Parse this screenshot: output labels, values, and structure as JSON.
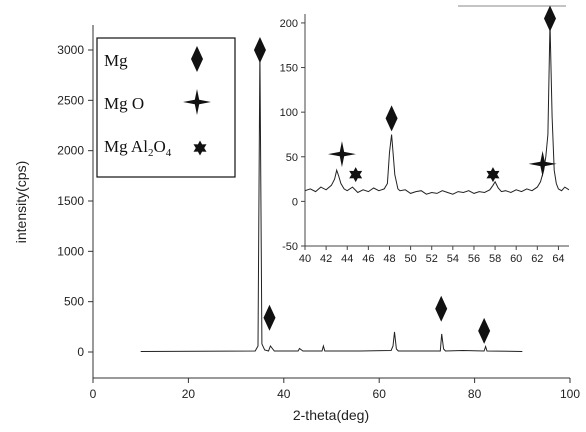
{
  "chart_data": [
    {
      "type": "line",
      "role": "main",
      "xlabel": "2-theta(deg)",
      "ylabel": "intensity(cps)",
      "xlim": [
        0,
        100
      ],
      "ylim": [
        -150,
        3300
      ],
      "xticks": [
        0,
        20,
        40,
        60,
        80,
        100
      ],
      "yticks": [
        0,
        500,
        1000,
        1500,
        2000,
        2500,
        3000
      ],
      "grid": false,
      "legend_position": "top-left",
      "legend": [
        {
          "label": "Mg",
          "marker": "diamond"
        },
        {
          "label": "Mg O",
          "marker": "four-point-star"
        },
        {
          "label": "Mg Al",
          "sub2": "2",
          "mid": "O",
          "sub4": "4",
          "marker": "six-point-star"
        }
      ],
      "series": [
        {
          "x": [
            10,
            34.0,
            34.6,
            35.0,
            35.4,
            36.0,
            36.8,
            37.2,
            38.0,
            43.0,
            43.3,
            44.0,
            48.0,
            48.3,
            48.6,
            56.0,
            62.5,
            62.9,
            63.2,
            63.6,
            64.0,
            64.6,
            72.8,
            73.1,
            73.5,
            73.9,
            77.5,
            82.0,
            82.3,
            82.6,
            90
          ],
          "y": [
            5,
            10,
            60,
            2990,
            80,
            20,
            10,
            60,
            10,
            10,
            35,
            10,
            10,
            60,
            10,
            10,
            15,
            60,
            200,
            30,
            10,
            10,
            10,
            180,
            30,
            10,
            15,
            10,
            55,
            10,
            5
          ]
        }
      ],
      "markers": [
        {
          "x": 35.0,
          "y": 3000,
          "phase": "Mg"
        },
        {
          "x": 37.0,
          "y": 340,
          "phase": "Mg"
        },
        {
          "x": 73.0,
          "y": 430,
          "phase": "Mg"
        },
        {
          "x": 82.0,
          "y": 210,
          "phase": "Mg"
        }
      ]
    },
    {
      "type": "line",
      "role": "inset",
      "xlim": [
        40,
        65
      ],
      "ylim": [
        -50,
        210
      ],
      "xticks": [
        40,
        42,
        44,
        46,
        48,
        50,
        52,
        54,
        56,
        58,
        60,
        62,
        64
      ],
      "yticks": [
        -50,
        0,
        50,
        100,
        150,
        200
      ],
      "grid": false,
      "series": [
        {
          "x": [
            40.0,
            40.5,
            41.0,
            41.5,
            42.0,
            42.5,
            42.8,
            43.0,
            43.2,
            43.4,
            43.7,
            44.0,
            44.5,
            45.0,
            45.5,
            46.0,
            46.5,
            47.0,
            47.5,
            47.8,
            48.0,
            48.2,
            48.5,
            48.8,
            49.0,
            49.5,
            50.0,
            50.5,
            51.0,
            51.5,
            52.0,
            52.5,
            53.0,
            53.5,
            54.0,
            54.5,
            55.0,
            55.5,
            56.0,
            56.5,
            57.0,
            57.5,
            57.8,
            58.0,
            58.3,
            58.6,
            59.0,
            59.5,
            60.0,
            60.5,
            61.0,
            61.5,
            62.0,
            62.3,
            62.6,
            62.8,
            63.0,
            63.2,
            63.4,
            63.6,
            63.8,
            64.0,
            64.3,
            64.6,
            65.0
          ],
          "y": [
            12,
            14,
            11,
            16,
            13,
            18,
            25,
            35,
            28,
            20,
            14,
            12,
            16,
            10,
            13,
            11,
            15,
            12,
            14,
            20,
            55,
            75,
            30,
            14,
            12,
            13,
            9,
            11,
            12,
            8,
            10,
            9,
            12,
            10,
            8,
            11,
            10,
            12,
            9,
            11,
            10,
            13,
            18,
            22,
            15,
            11,
            12,
            10,
            13,
            11,
            14,
            12,
            16,
            22,
            35,
            50,
            75,
            200,
            95,
            35,
            20,
            14,
            12,
            16,
            13
          ]
        }
      ],
      "markers": [
        {
          "x": 43.5,
          "y": 53,
          "phase": "Mg O"
        },
        {
          "x": 44.8,
          "y": 30,
          "phase": "Mg Al2O4"
        },
        {
          "x": 48.2,
          "y": 93,
          "phase": "Mg"
        },
        {
          "x": 57.8,
          "y": 30,
          "phase": "Mg Al2O4"
        },
        {
          "x": 62.5,
          "y": 42,
          "phase": "Mg O"
        },
        {
          "x": 63.2,
          "y": 205,
          "phase": "Mg"
        }
      ]
    }
  ]
}
